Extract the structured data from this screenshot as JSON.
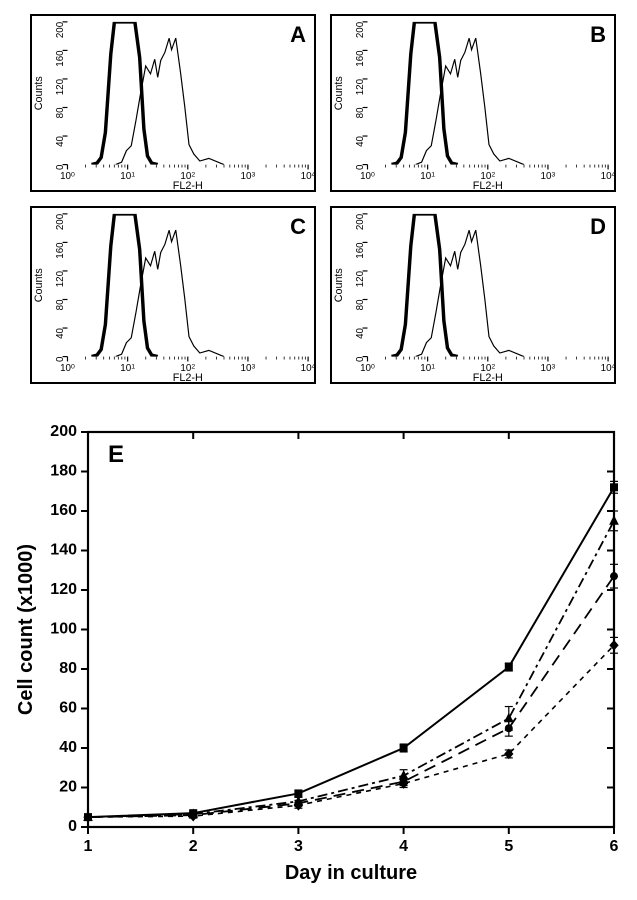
{
  "histograms": {
    "panels": [
      "A",
      "B",
      "C",
      "D"
    ],
    "xlabel": "FL2-H",
    "ylabel": "Counts",
    "x_scale": "log",
    "x_ticks": [
      "10⁰",
      "10¹",
      "10²",
      "10³",
      "10⁴"
    ],
    "y_ticks": [
      0,
      40,
      80,
      120,
      160,
      200
    ],
    "ylim": [
      0,
      200
    ],
    "label_fontsize": 11,
    "tick_fontsize": 10,
    "control_curve": {
      "stroke": "#000000",
      "stroke_width": 3.5,
      "points": [
        [
          0.4,
          0
        ],
        [
          0.49,
          2
        ],
        [
          0.56,
          10
        ],
        [
          0.63,
          45
        ],
        [
          0.72,
          155
        ],
        [
          0.78,
          200
        ],
        [
          1.12,
          200
        ],
        [
          1.2,
          150
        ],
        [
          1.27,
          50
        ],
        [
          1.33,
          12
        ],
        [
          1.4,
          2
        ],
        [
          1.5,
          0
        ]
      ]
    },
    "sample_curve": {
      "stroke": "#000000",
      "stroke_width": 1.2,
      "noise": true,
      "points": [
        [
          0.8,
          0
        ],
        [
          0.9,
          4
        ],
        [
          0.98,
          12
        ],
        [
          1.06,
          30
        ],
        [
          1.14,
          62
        ],
        [
          1.21,
          105
        ],
        [
          1.3,
          135
        ],
        [
          1.38,
          128
        ],
        [
          1.45,
          140
        ],
        [
          1.5,
          125
        ],
        [
          1.55,
          145
        ],
        [
          1.62,
          165
        ],
        [
          1.69,
          175
        ],
        [
          1.73,
          162
        ],
        [
          1.8,
          170
        ],
        [
          1.88,
          130
        ],
        [
          1.95,
          80
        ],
        [
          2.02,
          35
        ],
        [
          2.1,
          14
        ],
        [
          2.2,
          6
        ],
        [
          2.35,
          2
        ],
        [
          2.6,
          0
        ]
      ]
    }
  },
  "growth": {
    "panel_letter": "E",
    "xlabel": "Day in culture",
    "ylabel": "Cell count (x1000)",
    "xlabel_fontsize": 20,
    "xlabel_fontweight": "bold",
    "ylabel_fontsize": 20,
    "ylabel_fontweight": "bold",
    "xlim": [
      1,
      6
    ],
    "ylim": [
      0,
      200
    ],
    "x_ticks": [
      1,
      2,
      3,
      4,
      5,
      6
    ],
    "y_ticks": [
      0,
      20,
      40,
      60,
      80,
      100,
      120,
      140,
      160,
      180,
      200
    ],
    "tick_fontsize": 16,
    "tick_fontweight": "bold",
    "background_color": "#ffffff",
    "series": [
      {
        "marker": "square",
        "marker_size": 7,
        "line_style": "solid",
        "line_width": 2.0,
        "color": "#000000",
        "y": [
          5,
          7,
          17,
          40,
          81,
          172
        ],
        "err": [
          1,
          1,
          1.5,
          2,
          2,
          3
        ]
      },
      {
        "marker": "triangle",
        "marker_size": 8,
        "line_style": "dashdot",
        "line_width": 1.8,
        "color": "#000000",
        "y": [
          5,
          6.5,
          13,
          26,
          55,
          155
        ],
        "err": [
          1,
          1,
          2,
          3,
          6,
          5
        ]
      },
      {
        "marker": "circle",
        "marker_size": 7,
        "line_style": "longdash",
        "line_width": 1.8,
        "color": "#000000",
        "y": [
          5,
          6,
          12,
          23,
          50,
          127
        ],
        "err": [
          1,
          1,
          1.5,
          2,
          4,
          6
        ]
      },
      {
        "marker": "diamond",
        "marker_size": 8,
        "line_style": "shortdash",
        "line_width": 1.6,
        "color": "#000000",
        "y": [
          5,
          5.5,
          11,
          22,
          37,
          92
        ],
        "err": [
          1,
          1,
          1.5,
          2,
          2,
          4
        ]
      }
    ]
  }
}
